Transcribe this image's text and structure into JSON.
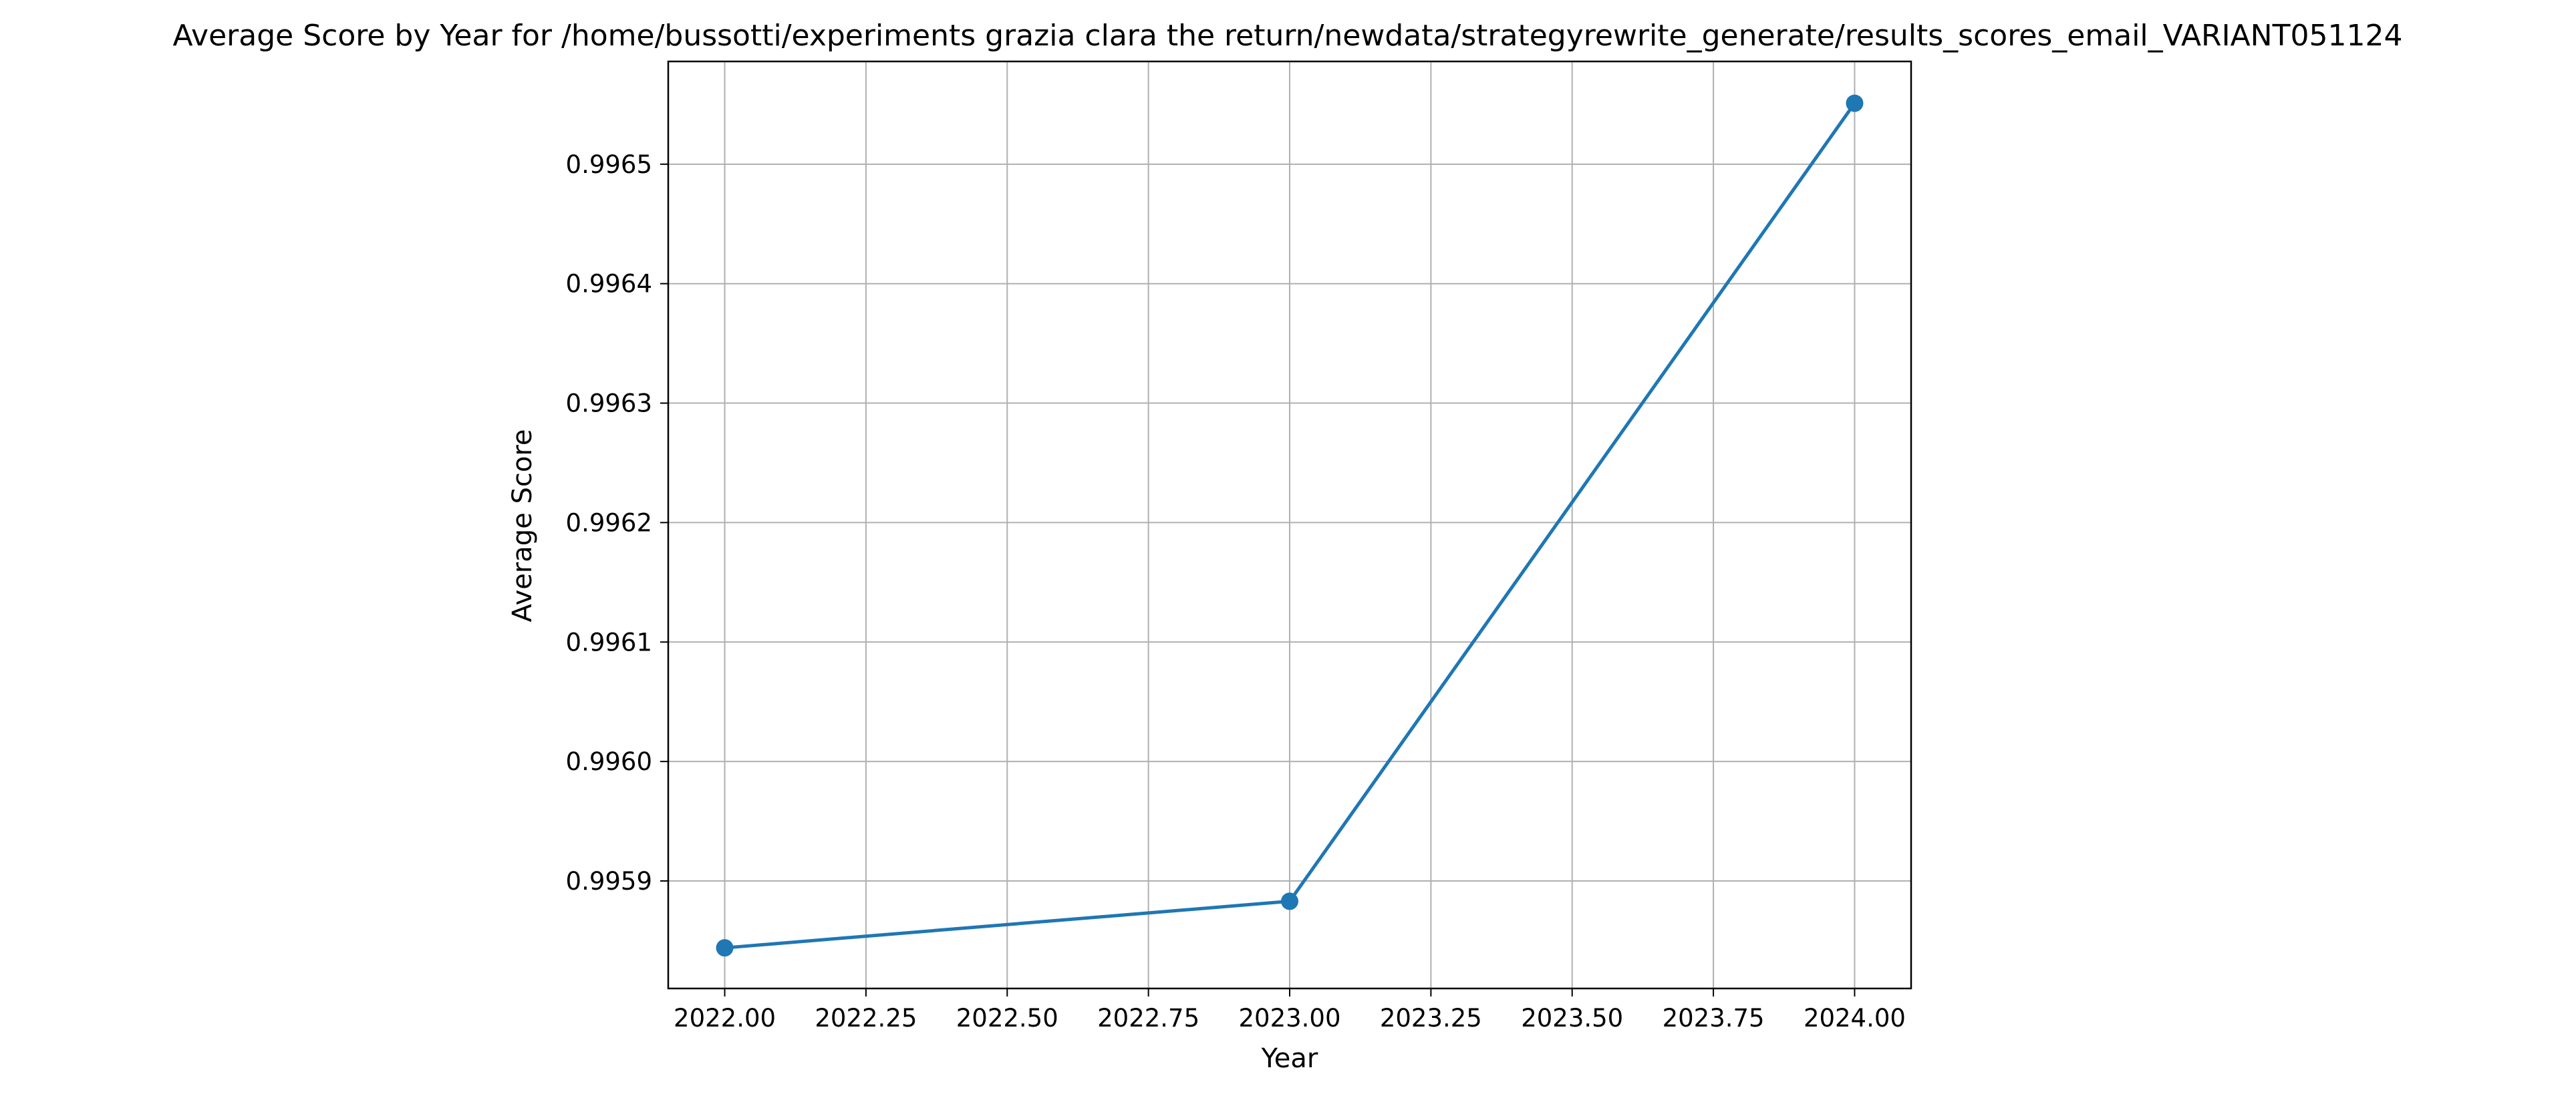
{
  "chart_data": {
    "type": "line",
    "title": "Average Score by Year for /home/bussotti/experiments grazia clara the return/newdata/strategyrewrite_generate/results_scores_email_VARIANT051124",
    "xlabel": "Year",
    "ylabel": "Average Score",
    "x": [
      2022.0,
      2023.0,
      2024.0
    ],
    "series": [
      {
        "values": [
          0.995844,
          0.995883,
          0.996551
        ]
      }
    ],
    "xlim": [
      2021.9,
      2024.1
    ],
    "ylim": [
      0.99581,
      0.996586
    ],
    "xticks": [
      2022.0,
      2022.25,
      2022.5,
      2022.75,
      2023.0,
      2023.25,
      2023.5,
      2023.75,
      2024.0
    ],
    "xtick_labels": [
      "2022.00",
      "2022.25",
      "2022.50",
      "2022.75",
      "2023.00",
      "2023.25",
      "2023.50",
      "2023.75",
      "2024.00"
    ],
    "yticks": [
      0.9959,
      0.996,
      0.9961,
      0.9962,
      0.9963,
      0.9964,
      0.9965
    ],
    "ytick_labels": [
      "0.9959",
      "0.9960",
      "0.9961",
      "0.9962",
      "0.9963",
      "0.9964",
      "0.9965"
    ],
    "grid": true,
    "marker": "circle",
    "colors": {
      "line": "#1f77b4",
      "grid": "#b0b0b0",
      "axes": "#000000"
    }
  }
}
